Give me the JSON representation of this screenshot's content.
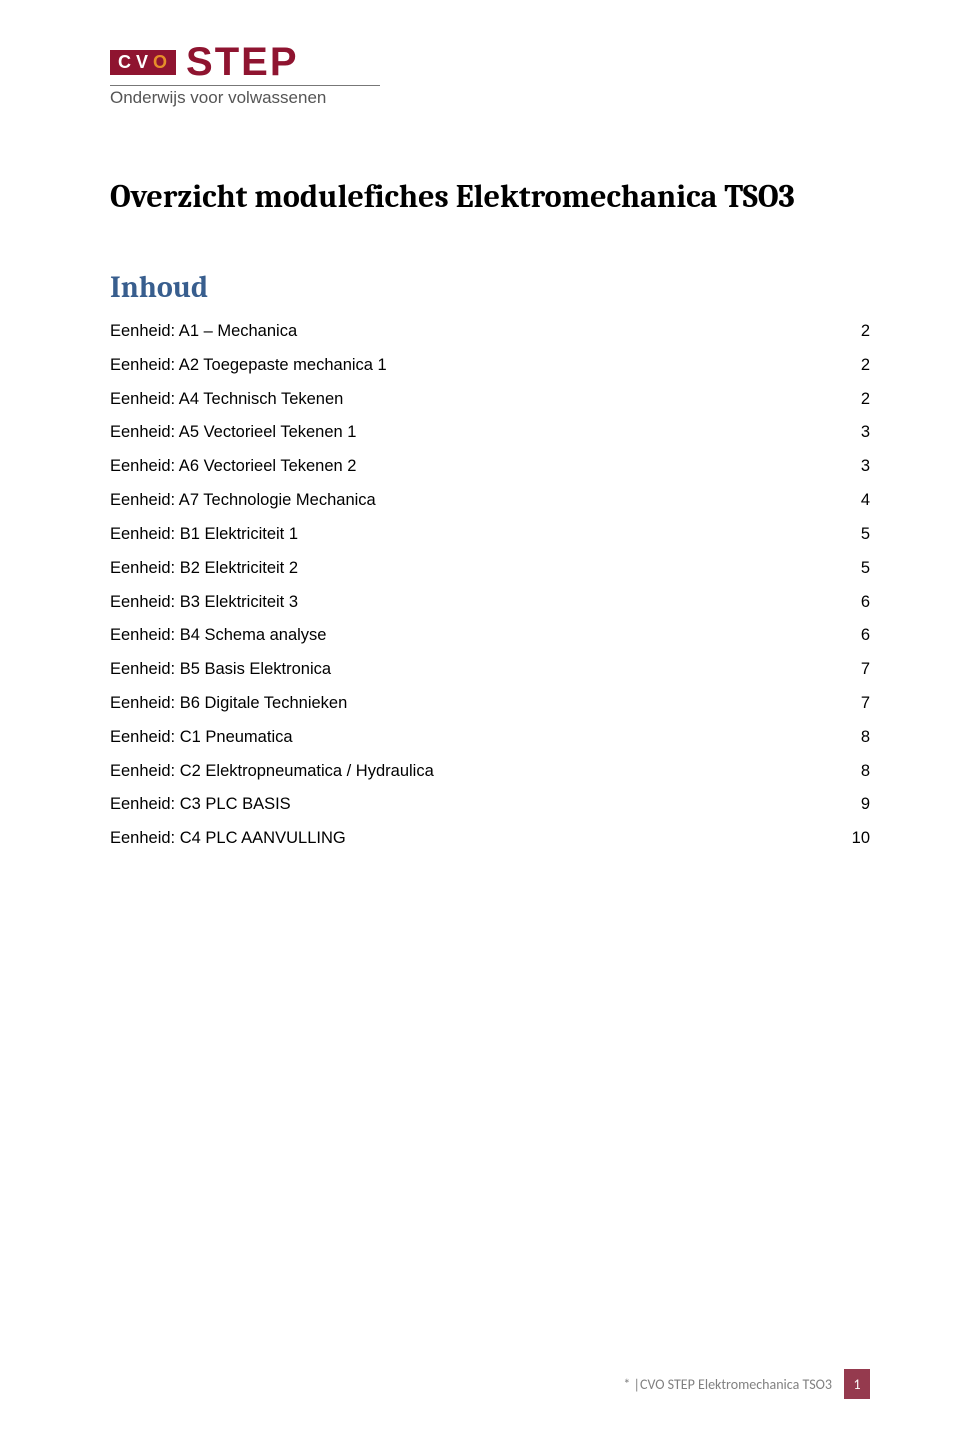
{
  "logo": {
    "box_letters": [
      "C",
      "V",
      "O"
    ],
    "box_bg": "#8f1430",
    "box_fg": "#ffffff",
    "box_orange": "#e58e2a",
    "word": "STEP",
    "word_color": "#8f1430",
    "subline": "Onderwijs voor volwassenen",
    "subline_color": "#555555",
    "rule_color": "#777777"
  },
  "title": {
    "text": "Overzicht modulefiches Elektromechanica TSO3",
    "fontsize": 32,
    "color": "#000000",
    "font": "Cambria"
  },
  "subtitle": {
    "text": "Inhoud",
    "fontsize": 30,
    "color": "#385e8e",
    "font": "Cambria"
  },
  "toc": {
    "fontsize": 16.5,
    "font": "Arial",
    "color": "#000000",
    "leader_char": ".",
    "items": [
      {
        "label": "Eenheid: A1 – Mechanica",
        "page": "2"
      },
      {
        "label": "Eenheid: A2 Toegepaste mechanica 1",
        "page": "2"
      },
      {
        "label": "Eenheid: A4 Technisch Tekenen",
        "page": "2"
      },
      {
        "label": "Eenheid: A5 Vectorieel Tekenen 1",
        "page": "3"
      },
      {
        "label": "Eenheid: A6 Vectorieel Tekenen 2",
        "page": "3"
      },
      {
        "label": "Eenheid: A7 Technologie Mechanica",
        "page": "4"
      },
      {
        "label": "Eenheid: B1 Elektriciteit 1",
        "page": "5"
      },
      {
        "label": "Eenheid: B2 Elektriciteit 2",
        "page": "5"
      },
      {
        "label": "Eenheid: B3 Elektriciteit 3",
        "page": "6"
      },
      {
        "label": "Eenheid: B4 Schema analyse",
        "page": "6"
      },
      {
        "label": "Eenheid: B5 Basis Elektronica",
        "page": "7"
      },
      {
        "label": "Eenheid: B6 Digitale Technieken",
        "page": "7"
      },
      {
        "label": "Eenheid: C1 Pneumatica",
        "page": "8"
      },
      {
        "label": "Eenheid: C2 Elektropneumatica / Hydraulica",
        "page": "8"
      },
      {
        "label": "Eenheid: C3 PLC BASIS",
        "page": "9"
      },
      {
        "label": "Eenheid: C4 PLC AANVULLING",
        "page": "10"
      }
    ]
  },
  "footer": {
    "prefix": "* |",
    "text": "CVO STEP  Elektromechanica TSO3",
    "text_color": "#808080",
    "page_number": "1",
    "badge_bg": "#953a4e",
    "badge_fg": "#ffffff"
  }
}
